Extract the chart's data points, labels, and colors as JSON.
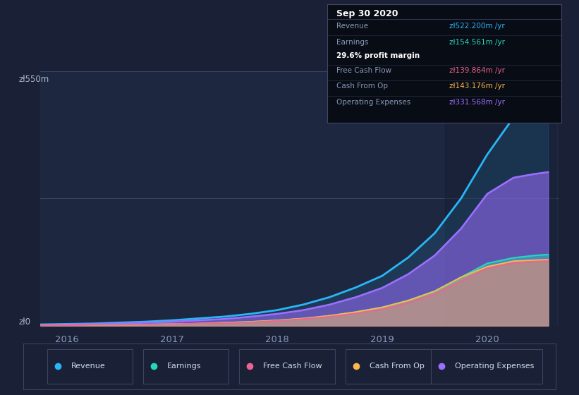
{
  "bg_color": "#1a2035",
  "plot_bg_color": "#1e2740",
  "y_label_top": "zł550m",
  "y_label_bottom": "zł0",
  "x_ticks": [
    2016,
    2017,
    2018,
    2019,
    2020
  ],
  "years": [
    2015.75,
    2016.0,
    2016.25,
    2016.5,
    2016.75,
    2017.0,
    2017.25,
    2017.5,
    2017.75,
    2018.0,
    2018.25,
    2018.5,
    2018.75,
    2019.0,
    2019.25,
    2019.5,
    2019.75,
    2020.0,
    2020.25,
    2020.45,
    2020.58
  ],
  "revenue": [
    3,
    4,
    5,
    7,
    9,
    12,
    16,
    20,
    26,
    34,
    46,
    62,
    83,
    108,
    148,
    200,
    275,
    370,
    450,
    510,
    522
  ],
  "earnings": [
    1,
    1,
    2,
    2,
    3,
    4,
    5,
    7,
    9,
    12,
    16,
    22,
    30,
    40,
    55,
    75,
    105,
    135,
    147,
    152,
    154
  ],
  "free_cash_flow": [
    1,
    1,
    2,
    2,
    3,
    4,
    5,
    6,
    8,
    11,
    15,
    20,
    27,
    36,
    50,
    68,
    96,
    124,
    136,
    139,
    140
  ],
  "cash_from_op": [
    1,
    1,
    2,
    2,
    3,
    4,
    5,
    7,
    9,
    12,
    16,
    22,
    30,
    40,
    55,
    75,
    105,
    128,
    140,
    142,
    143
  ],
  "operating_expenses": [
    2,
    3,
    4,
    5,
    7,
    9,
    12,
    15,
    20,
    26,
    34,
    46,
    62,
    82,
    112,
    152,
    210,
    285,
    320,
    328,
    332
  ],
  "revenue_color": "#29b6f6",
  "earnings_color": "#26d7c0",
  "free_cash_flow_color": "#f06292",
  "cash_from_op_color": "#ffb74d",
  "operating_expenses_color": "#9c6fff",
  "info_box": {
    "date": "Sep 30 2020",
    "rows": [
      {
        "label": "Revenue",
        "value": "zł522.200m /yr",
        "color": "#29b6f6",
        "divider": true
      },
      {
        "label": "Earnings",
        "value": "zł154.561m /yr",
        "color": "#26d7c0",
        "divider": false
      },
      {
        "label": "",
        "value": "29.6% profit margin",
        "color": "#ffffff",
        "divider": true
      },
      {
        "label": "Free Cash Flow",
        "value": "zł139.864m /yr",
        "color": "#f06292",
        "divider": true
      },
      {
        "label": "Cash From Op",
        "value": "zł143.176m /yr",
        "color": "#ffb74d",
        "divider": true
      },
      {
        "label": "Operating Expenses",
        "value": "zł331.568m /yr",
        "color": "#9c6fff",
        "divider": false
      }
    ]
  },
  "legend": [
    {
      "label": "Revenue",
      "color": "#29b6f6"
    },
    {
      "label": "Earnings",
      "color": "#26d7c0"
    },
    {
      "label": "Free Cash Flow",
      "color": "#f06292"
    },
    {
      "label": "Cash From Op",
      "color": "#ffb74d"
    },
    {
      "label": "Operating Expenses",
      "color": "#9c6fff"
    }
  ],
  "ylim": [
    0,
    550
  ],
  "xlim": [
    2015.75,
    2020.68
  ]
}
